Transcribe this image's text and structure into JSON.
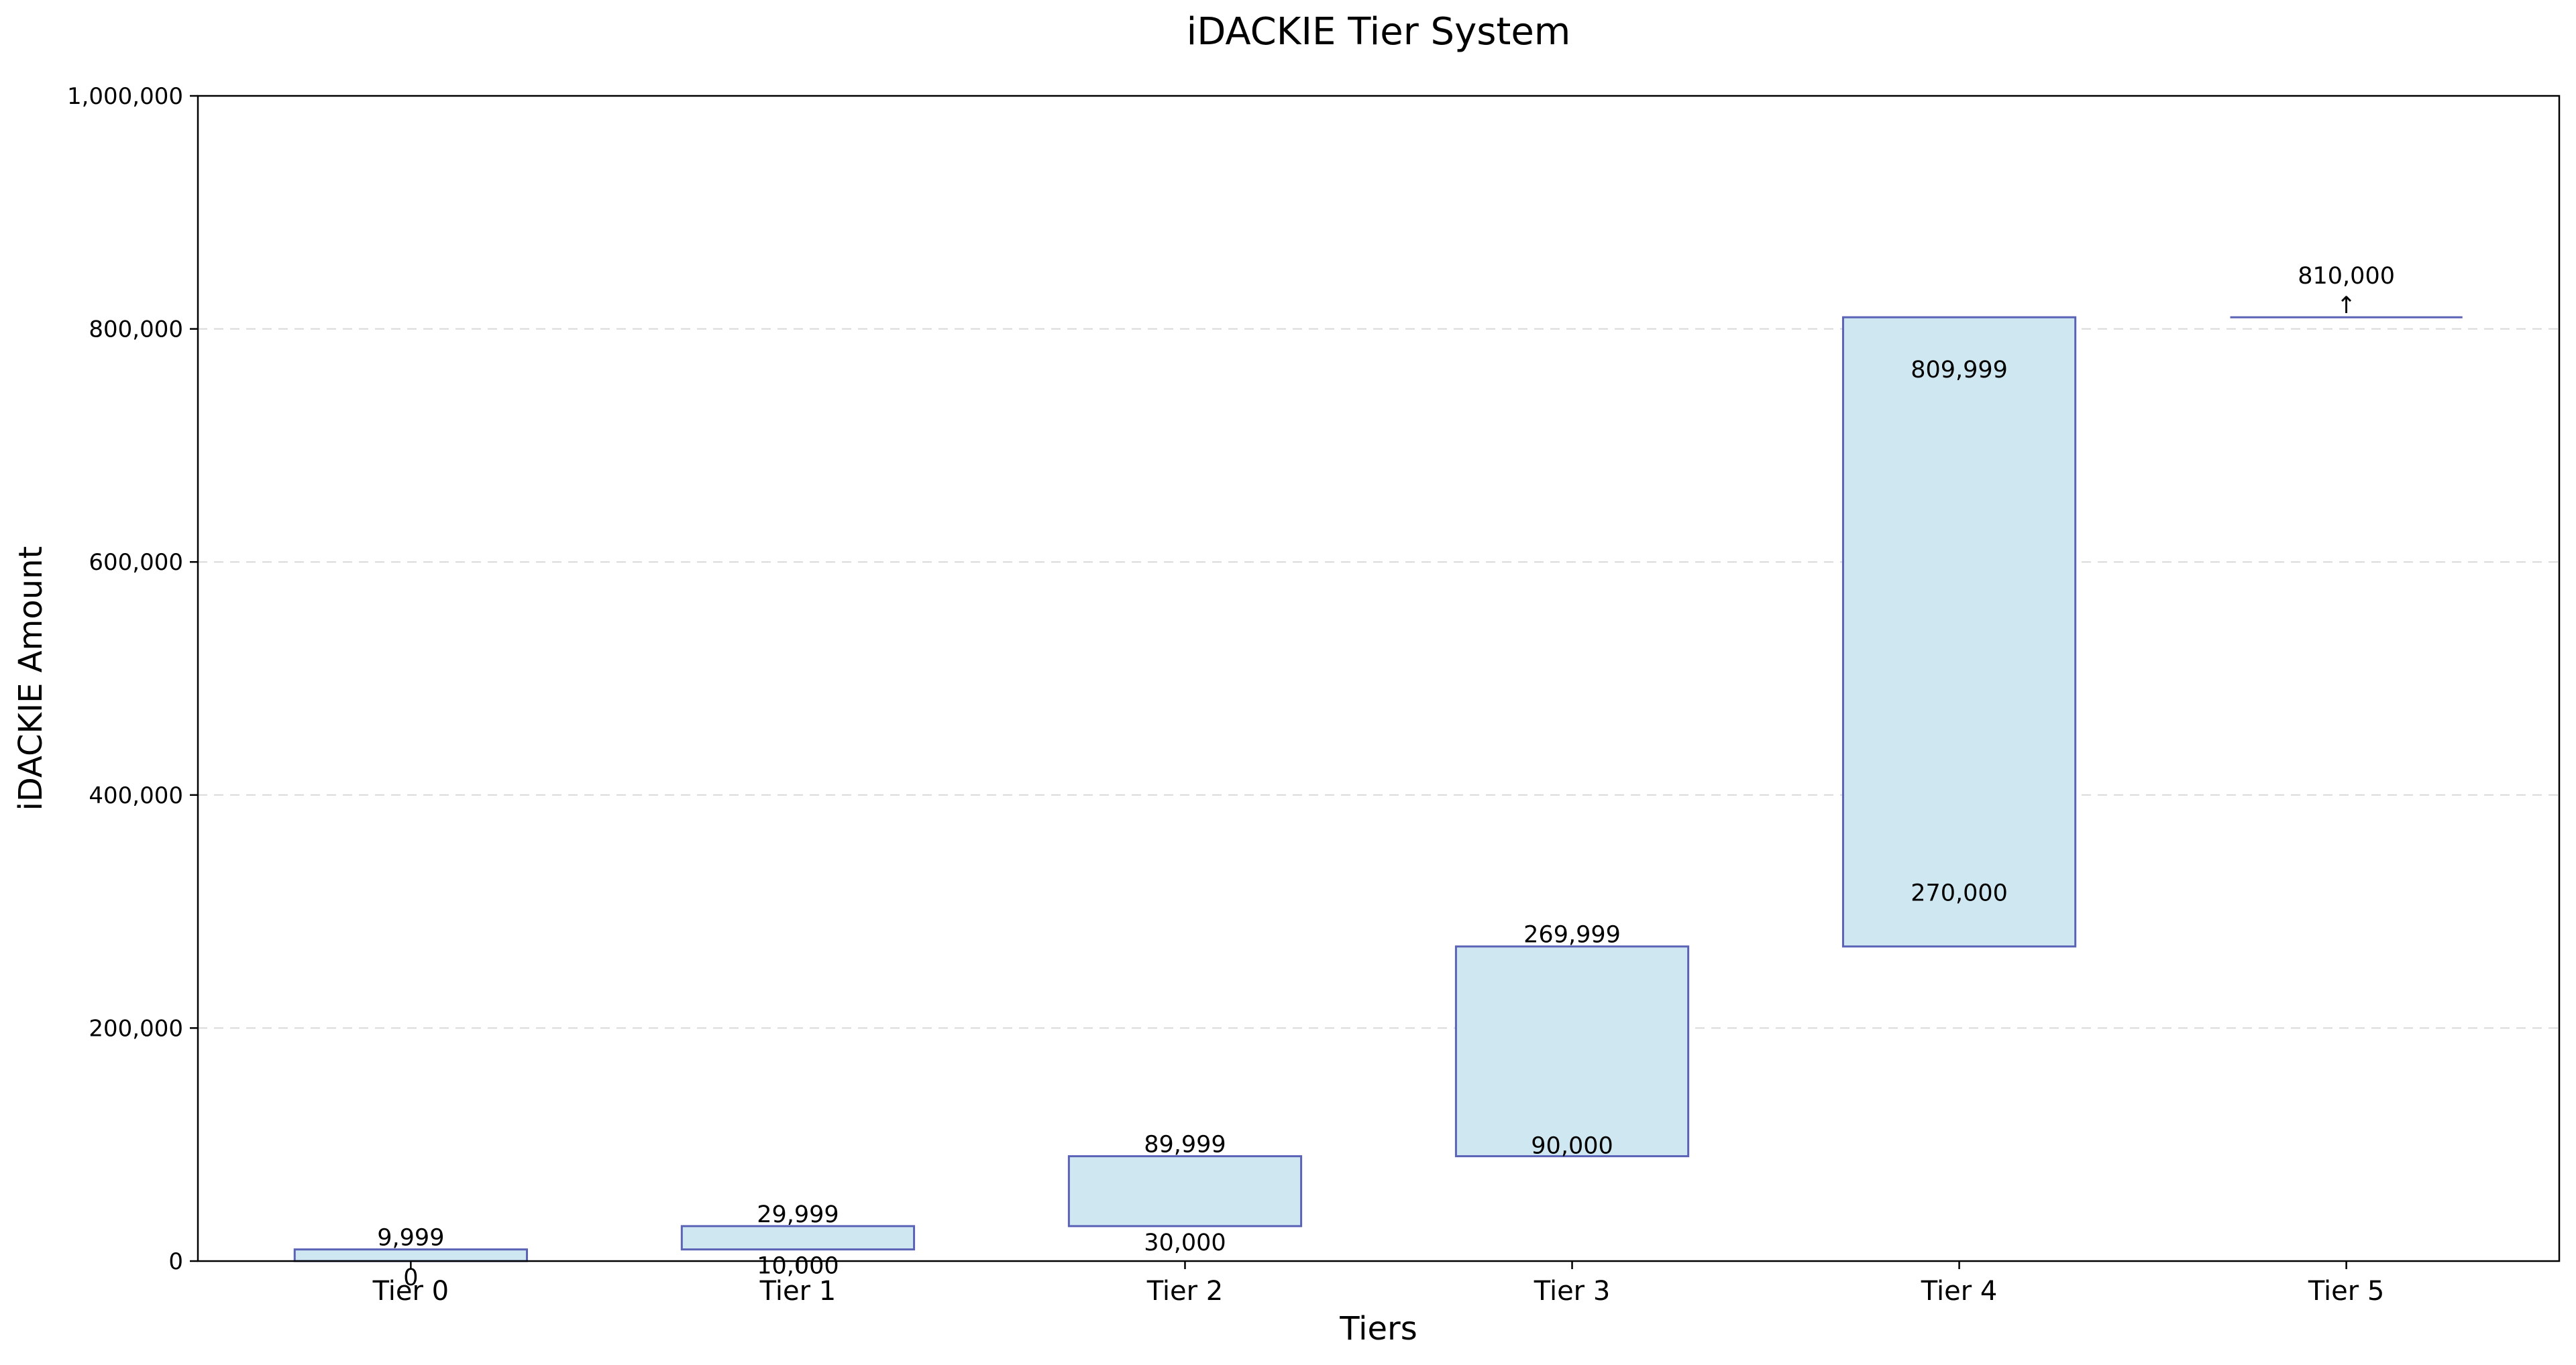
{
  "chart_data": {
    "type": "bar",
    "title": "iDACKIE Tier System",
    "xlabel": "Tiers",
    "ylabel": "iDACKIE Amount",
    "ylim": [
      0,
      1000000
    ],
    "yticks": [
      0,
      200000,
      400000,
      600000,
      800000,
      1000000
    ],
    "ytick_labels": [
      "0",
      "200,000",
      "400,000",
      "600,000",
      "800,000",
      "1,000,000"
    ],
    "grid": true,
    "categories": [
      "Tier 0",
      "Tier 1",
      "Tier 2",
      "Tier 3",
      "Tier 4",
      "Tier 5"
    ],
    "ranges": [
      {
        "low": 0,
        "high": 9999,
        "low_label": "0",
        "high_label": "9,999"
      },
      {
        "low": 10000,
        "high": 29999,
        "low_label": "10,000",
        "high_label": "29,999"
      },
      {
        "low": 30000,
        "high": 89999,
        "low_label": "30,000",
        "high_label": "89,999"
      },
      {
        "low": 90000,
        "high": 269999,
        "low_label": "90,000",
        "high_label": "269,999"
      },
      {
        "low": 270000,
        "high": 809999,
        "low_label": "270,000",
        "high_label": "809,999"
      },
      {
        "low": 810000,
        "high": null,
        "low_label": "810,000",
        "high_label": "↑"
      }
    ],
    "colors": {
      "fill": "#cfe7f0",
      "edge": "#5b63b7"
    }
  }
}
